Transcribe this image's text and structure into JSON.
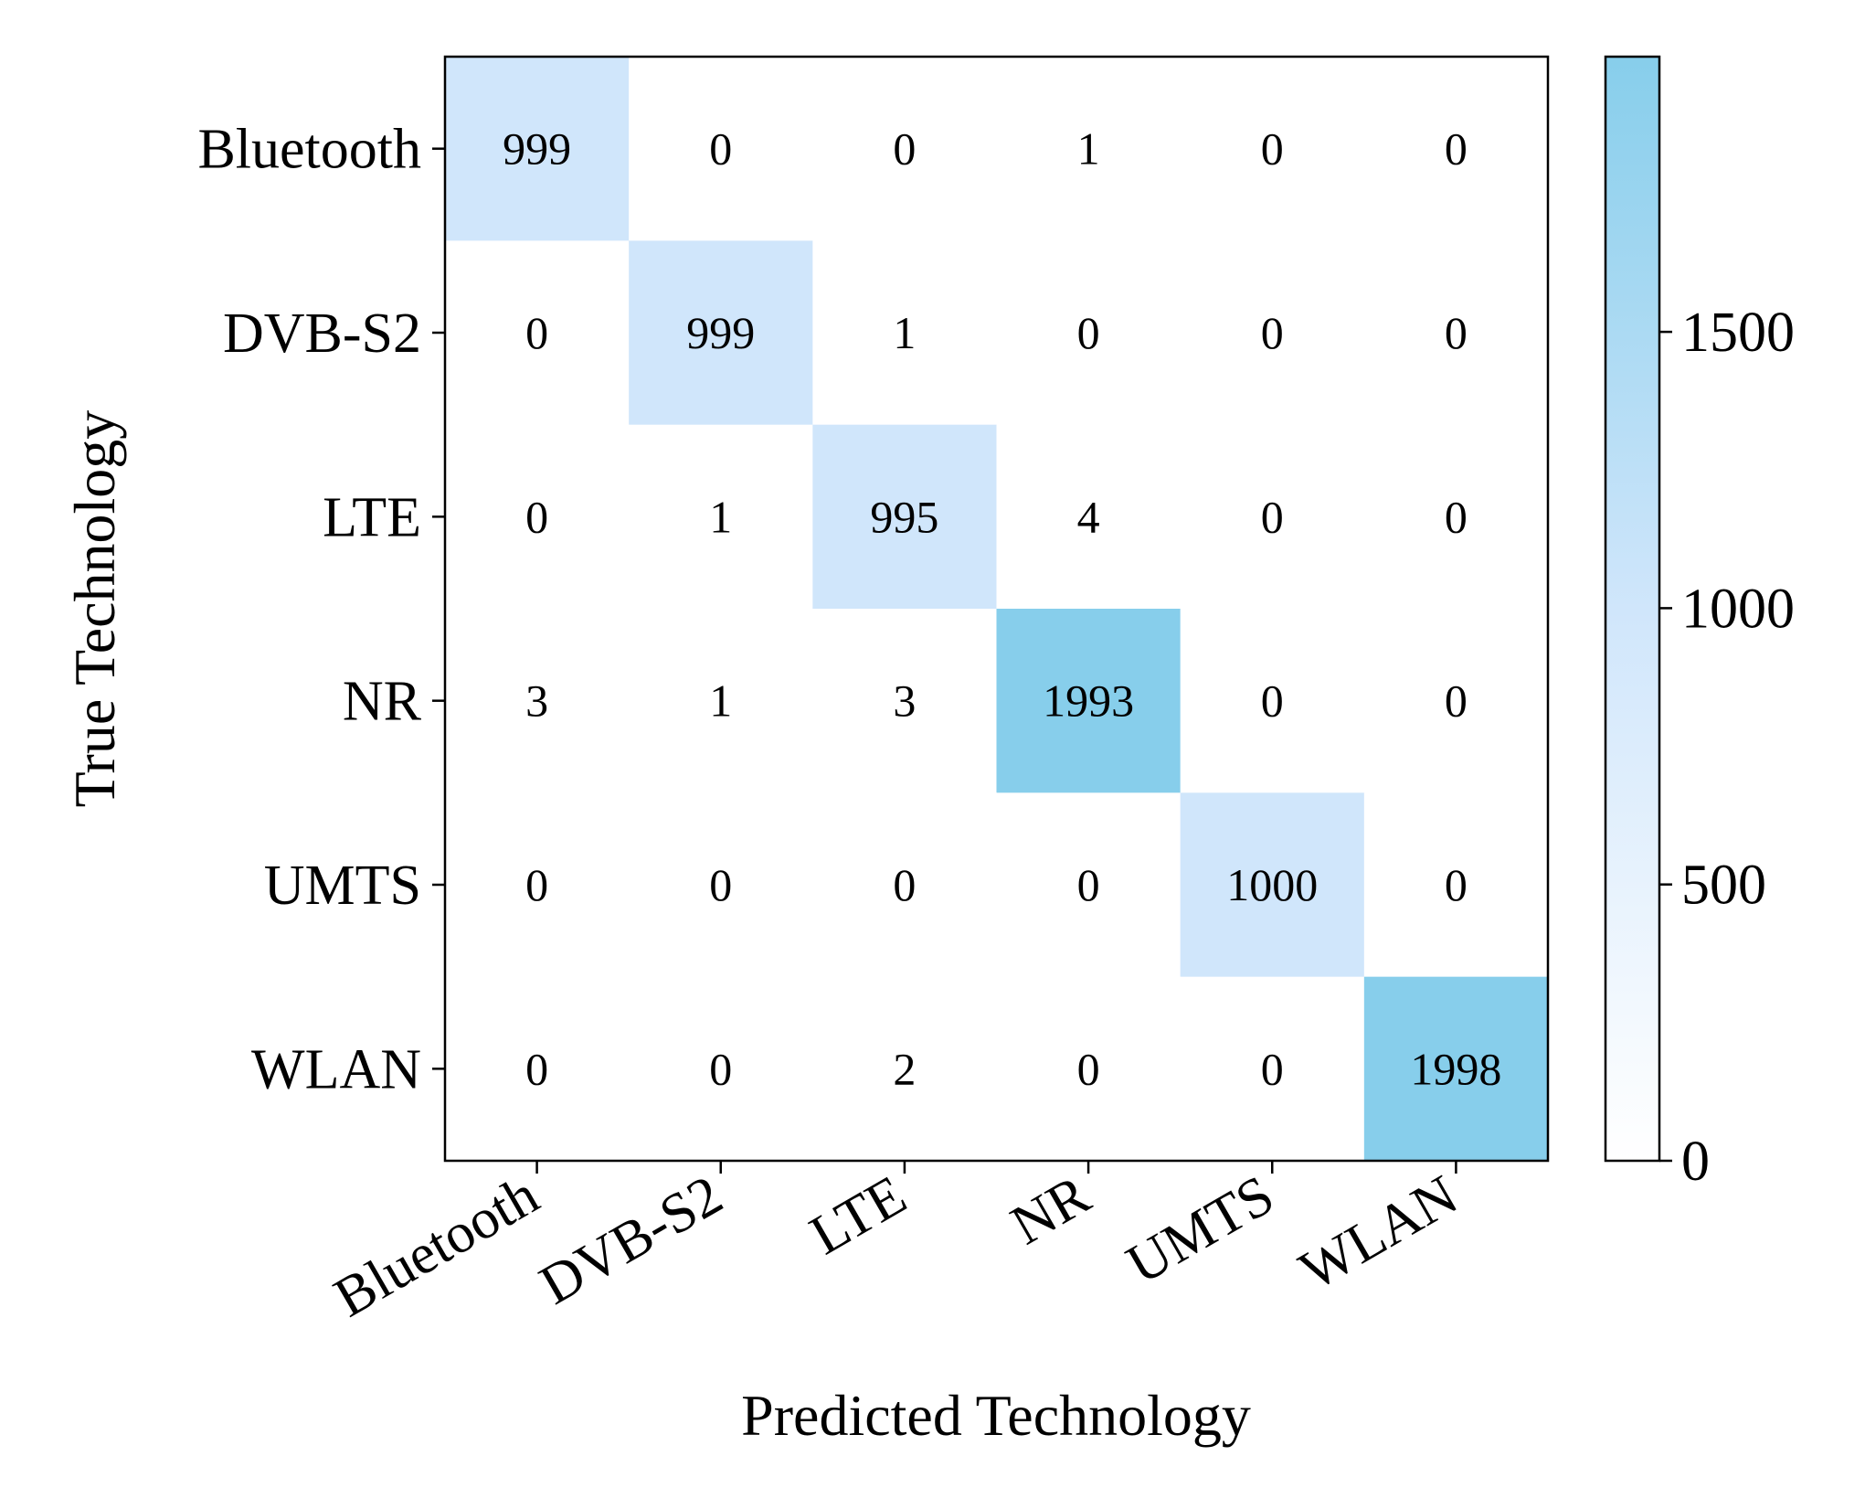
{
  "chart_data": {
    "type": "heatmap",
    "title": "",
    "xlabel": "Predicted Technology",
    "ylabel": "True Technology",
    "x_categories": [
      "Bluetooth",
      "DVB-S2",
      "LTE",
      "NR",
      "UMTS",
      "WLAN"
    ],
    "y_categories": [
      "Bluetooth",
      "DVB-S2",
      "LTE",
      "NR",
      "UMTS",
      "WLAN"
    ],
    "values": [
      [
        999,
        0,
        0,
        1,
        0,
        0
      ],
      [
        0,
        999,
        1,
        0,
        0,
        0
      ],
      [
        0,
        1,
        995,
        4,
        0,
        0
      ],
      [
        3,
        1,
        3,
        1993,
        0,
        0
      ],
      [
        0,
        0,
        0,
        0,
        1000,
        0
      ],
      [
        0,
        0,
        2,
        0,
        0,
        1998
      ]
    ],
    "colorbar": {
      "range": [
        0,
        1998
      ],
      "ticks": [
        "0",
        "500",
        "1000",
        "1500"
      ],
      "colors": [
        "#ffffff",
        "#d0e6fb",
        "#87ceeb"
      ]
    },
    "grid": false
  }
}
